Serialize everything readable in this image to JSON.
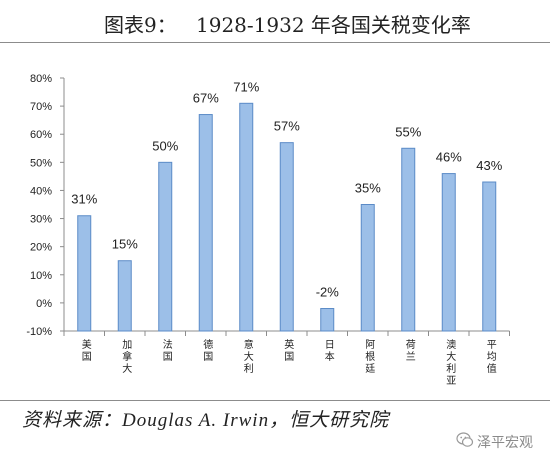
{
  "figure": {
    "label": "图表9："
  },
  "chart_data": {
    "type": "bar",
    "title": "1928-1932 年各国关税变化率",
    "xlabel": "",
    "ylabel": "",
    "categories": [
      "美国",
      "加拿大",
      "法国",
      "德国",
      "意大利",
      "英国",
      "日本",
      "阿根廷",
      "荷兰",
      "澳大利亚",
      "平均值"
    ],
    "values": [
      31,
      15,
      50,
      67,
      71,
      57,
      -2,
      35,
      55,
      46,
      43
    ],
    "data_labels": [
      "31%",
      "15%",
      "50%",
      "67%",
      "71%",
      "57%",
      "-2%",
      "35%",
      "55%",
      "46%",
      "43%"
    ],
    "ylim": [
      -10,
      80
    ],
    "yticks": [
      -10,
      0,
      10,
      20,
      30,
      40,
      50,
      60,
      70,
      80
    ],
    "ytick_labels": [
      "-10%",
      "0%",
      "10%",
      "20%",
      "30%",
      "40%",
      "50%",
      "60%",
      "70%",
      "80%"
    ],
    "grid": false,
    "legend": "none",
    "colors": {
      "bar_fill": "#9cbfe8",
      "bar_stroke": "#5b8bc7",
      "axis": "#8c8c8c",
      "text": "#222222"
    }
  },
  "source": "资料来源：Douglas A. Irwin，恒大研究院",
  "watermark": {
    "text": "泽平宏观",
    "icon": "wechat-logo-icon"
  }
}
